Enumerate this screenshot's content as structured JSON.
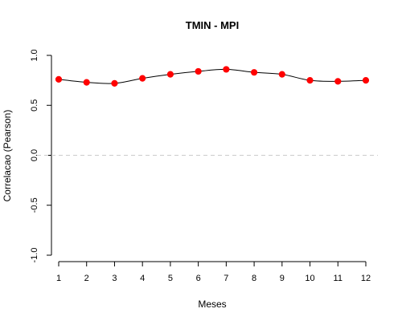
{
  "chart_data": {
    "type": "line",
    "title": "TMIN - MPI",
    "xlabel": "Meses",
    "ylabel": "Correlacao (Pearson)",
    "x": [
      1,
      2,
      3,
      4,
      5,
      6,
      7,
      8,
      9,
      10,
      11,
      12
    ],
    "x_tick_labels": [
      "1",
      "2",
      "3",
      "4",
      "5",
      "6",
      "7",
      "8",
      "9",
      "10",
      "11",
      "12"
    ],
    "y_ticks": [
      -1.0,
      -0.5,
      0.0,
      0.5,
      1.0
    ],
    "y_tick_labels": [
      "-1.0",
      "-0.5",
      "0.0",
      "0.5",
      "1.0"
    ],
    "ylim": [
      -1.0,
      1.0
    ],
    "xlim": [
      1,
      12
    ],
    "series": [
      {
        "values": [
          0.76,
          0.73,
          0.72,
          0.77,
          0.81,
          0.84,
          0.86,
          0.83,
          0.81,
          0.75,
          0.74,
          0.75
        ],
        "line_color": "#000000",
        "marker_color": "#ff0000"
      }
    ],
    "reference_line": {
      "y": 0.0,
      "color": "#cccccc",
      "style": "dashed"
    },
    "grid": false,
    "legend": "none"
  }
}
